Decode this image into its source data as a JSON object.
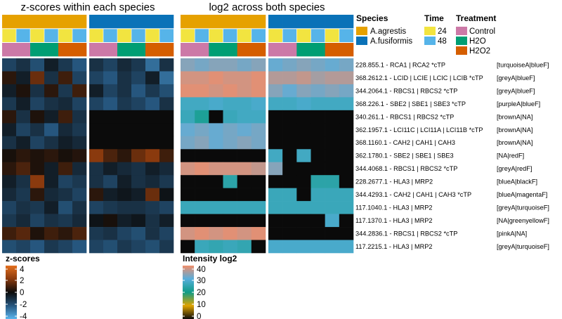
{
  "chart_data": {
    "type": "heatmap",
    "panels": [
      {
        "title": "z-scores within each species",
        "scale": "zscore"
      },
      {
        "title": "log2 across both species",
        "scale": "intensity"
      }
    ],
    "columns": [
      {
        "species": "A.agrestis",
        "time": "24",
        "treatment": "Control"
      },
      {
        "species": "A.agrestis",
        "time": "48",
        "treatment": "Control"
      },
      {
        "species": "A.agrestis",
        "time": "24",
        "treatment": "H2O"
      },
      {
        "species": "A.agrestis",
        "time": "48",
        "treatment": "H2O"
      },
      {
        "species": "A.agrestis",
        "time": "24",
        "treatment": "H2O2"
      },
      {
        "species": "A.agrestis",
        "time": "48",
        "treatment": "H2O2"
      },
      {
        "species": "A.fusiformis",
        "time": "24",
        "treatment": "Control"
      },
      {
        "species": "A.fusiformis",
        "time": "48",
        "treatment": "Control"
      },
      {
        "species": "A.fusiformis",
        "time": "24",
        "treatment": "H2O"
      },
      {
        "species": "A.fusiformis",
        "time": "48",
        "treatment": "H2O"
      },
      {
        "species": "A.fusiformis",
        "time": "24",
        "treatment": "H2O2"
      },
      {
        "species": "A.fusiformis",
        "time": "48",
        "treatment": "H2O2"
      }
    ],
    "rows": [
      {
        "label": "228.855.1 - RCA1 | RCA2 *cTP",
        "module": "[turquoiseA|blueF]"
      },
      {
        "label": "368.2612.1 - LCID | LCIE | LCIC | LCIB *cTP",
        "module": "[greyA|blueF]"
      },
      {
        "label": "344.2064.1 - RBCS1 | RBCS2 *cTP",
        "module": "[greyA|blueF]"
      },
      {
        "label": "368.226.1 - SBE2 | SBE1 | SBE3 *cTP",
        "module": "[purpleA|blueF]"
      },
      {
        "label": "340.261.1 - RBCS1 | RBCS2 *cTP",
        "module": "[brownA|NA]"
      },
      {
        "label": "362.1957.1 - LCI11C | LCI11A | LCI11B *cTP",
        "module": "[brownA|NA]"
      },
      {
        "label": "368.1160.1 - CAH2 | CAH1 | CAH3",
        "module": "[brownA|NA]"
      },
      {
        "label": "362.1780.1 - SBE2 | SBE1 | SBE3",
        "module": "[NA|redF]"
      },
      {
        "label": "344.4068.1 - RBCS1 | RBCS2 *cTP",
        "module": "[greyA|redF]"
      },
      {
        "label": "228.2677.1 - HLA3 | MRP2",
        "module": "[blueA|blackF]"
      },
      {
        "label": "344.4293.1 - CAH2 | CAH1 | CAH3 *cTP",
        "module": "[blueA|magentaF]"
      },
      {
        "label": "117.1040.1 - HLA3 | MRP2",
        "module": "[greyA|turquoiseF]"
      },
      {
        "label": "117.1370.1 - HLA3 | MRP2",
        "module": "[NA|greenyellowF]"
      },
      {
        "label": "344.2836.1 - RBCS1 | RBCS2 *cTP",
        "module": "[pinkA|NA]"
      },
      {
        "label": "117.2215.1 - HLA3 | MRP2",
        "module": "[greyA|turquoiseF]"
      }
    ],
    "zscores": [
      [
        -1.5,
        -1.0,
        -1.8,
        -0.5,
        -1.2,
        -2.0,
        -1.0,
        -1.5,
        -0.8,
        -1.2,
        -2.5,
        -1.0
      ],
      [
        0.5,
        -0.5,
        1.5,
        -1.0,
        0.8,
        -1.5,
        -1.5,
        -2.0,
        -1.0,
        -1.5,
        -0.5,
        -2.5
      ],
      [
        -0.5,
        0.3,
        -1.0,
        0.5,
        -1.2,
        0.8,
        -0.5,
        -1.5,
        -1.0,
        -2.0,
        -1.2,
        -1.8
      ],
      [
        -1.2,
        -0.5,
        -1.5,
        -1.0,
        -0.8,
        -1.5,
        -1.5,
        -2.0,
        -1.2,
        -1.5,
        -2.0,
        -1.0
      ],
      [
        0.5,
        -1.0,
        0.3,
        -0.5,
        0.8,
        -1.0,
        0,
        0,
        0,
        0,
        0,
        0
      ],
      [
        -0.5,
        -1.5,
        -1.0,
        -2.0,
        -0.8,
        -1.2,
        0,
        0,
        0,
        0,
        0,
        0
      ],
      [
        -1.0,
        -0.5,
        -1.5,
        -1.0,
        -0.5,
        -0.8,
        0,
        0,
        0,
        0,
        0,
        0
      ],
      [
        0.2,
        0.5,
        0.3,
        0.5,
        0.2,
        0.4,
        2.0,
        1.0,
        0.5,
        1.5,
        2.0,
        0.8
      ],
      [
        0.5,
        1.0,
        0.3,
        -0.5,
        0.8,
        -0.8,
        -1.0,
        -0.5,
        -0.8,
        -1.0,
        -0.5,
        -0.8
      ],
      [
        -0.5,
        -1.0,
        2.0,
        -0.5,
        -1.5,
        -1.2,
        -1.0,
        -1.5,
        -0.5,
        -1.0,
        -0.8,
        -1.2
      ],
      [
        -0.8,
        -1.2,
        0.5,
        -0.8,
        -1.0,
        -1.5,
        0.5,
        -0.5,
        -0.3,
        -0.5,
        1.5,
        -0.2
      ],
      [
        -1.5,
        -1.0,
        -1.2,
        -0.5,
        -1.8,
        -1.0,
        -1.5,
        -1.2,
        -1.0,
        -1.0,
        -1.2,
        -1.5
      ],
      [
        -1.2,
        -0.8,
        -1.5,
        -1.0,
        -1.2,
        -0.8,
        -0.2,
        0.2,
        -0.5,
        -0.3,
        -1.0,
        -0.5
      ],
      [
        0.8,
        1.2,
        0.3,
        0.8,
        0.5,
        1.0,
        -1.2,
        -1.0,
        -1.5,
        -1.8,
        -1.0,
        -1.5
      ],
      [
        -1.8,
        -1.5,
        -2.0,
        -1.2,
        -1.5,
        -2.0,
        -1.5,
        -1.8,
        -1.2,
        -1.5,
        -1.8,
        -1.2
      ]
    ],
    "intensity": [
      [
        33,
        32,
        33,
        33,
        32,
        33,
        31,
        32,
        33,
        32,
        31,
        32
      ],
      [
        38,
        38,
        39,
        38,
        38,
        39,
        36,
        36,
        37,
        35,
        36,
        36
      ],
      [
        39,
        39,
        38,
        39,
        38,
        39,
        33,
        31,
        33,
        32,
        33,
        32
      ],
      [
        27,
        27,
        28,
        27,
        27,
        28,
        27,
        27,
        28,
        27,
        27,
        27
      ],
      [
        26,
        22,
        0,
        26,
        27,
        27,
        0,
        0,
        0,
        0,
        0,
        0
      ],
      [
        31,
        32,
        31,
        32,
        31,
        32,
        0,
        0,
        0,
        0,
        0,
        0
      ],
      [
        32,
        33,
        31,
        32,
        33,
        32,
        0,
        0,
        0,
        0,
        0,
        0
      ],
      [
        0,
        0,
        0,
        0,
        0,
        0,
        27,
        0,
        27,
        0,
        0,
        0
      ],
      [
        38,
        39,
        38,
        38,
        38,
        37,
        33,
        0,
        0,
        0,
        0,
        0
      ],
      [
        0,
        0,
        0,
        24,
        0,
        0,
        0,
        0,
        0,
        24,
        24,
        0
      ],
      [
        0,
        0,
        0,
        0,
        0,
        0,
        26,
        26,
        0,
        26,
        26,
        26
      ],
      [
        26,
        26,
        26,
        26,
        26,
        26,
        26,
        26,
        26,
        26,
        26,
        26
      ],
      [
        0,
        0,
        0,
        0,
        0,
        0,
        0,
        0,
        0,
        0,
        28,
        0
      ],
      [
        38,
        39,
        38,
        39,
        38,
        39,
        0,
        0,
        0,
        0,
        0,
        0
      ],
      [
        0,
        26,
        25,
        26,
        25,
        0,
        28,
        28,
        28,
        28,
        28,
        28
      ]
    ],
    "legend": {
      "species": {
        "title": "Species",
        "items": [
          {
            "label": "A.agrestis",
            "color": "#E6A100"
          },
          {
            "label": "A.fusiformis",
            "color": "#0A72B8"
          }
        ]
      },
      "time": {
        "title": "Time",
        "items": [
          {
            "label": "24",
            "color": "#F2E440"
          },
          {
            "label": "48",
            "color": "#56B4E9"
          }
        ]
      },
      "treatment": {
        "title": "Treatment",
        "items": [
          {
            "label": "Control",
            "color": "#CC79A7"
          },
          {
            "label": "H2O",
            "color": "#009E73"
          },
          {
            "label": "H2O2",
            "color": "#D55E00"
          }
        ]
      }
    },
    "zscore_scale": {
      "title": "z-scores",
      "ticks": [
        "4",
        "2",
        "0",
        "-2",
        "-4"
      ],
      "range": [
        -4,
        4
      ]
    },
    "intensity_scale": {
      "title": "Intensity log2",
      "ticks": [
        "40",
        "30",
        "20",
        "10",
        "0"
      ],
      "range": [
        0,
        40
      ]
    }
  }
}
